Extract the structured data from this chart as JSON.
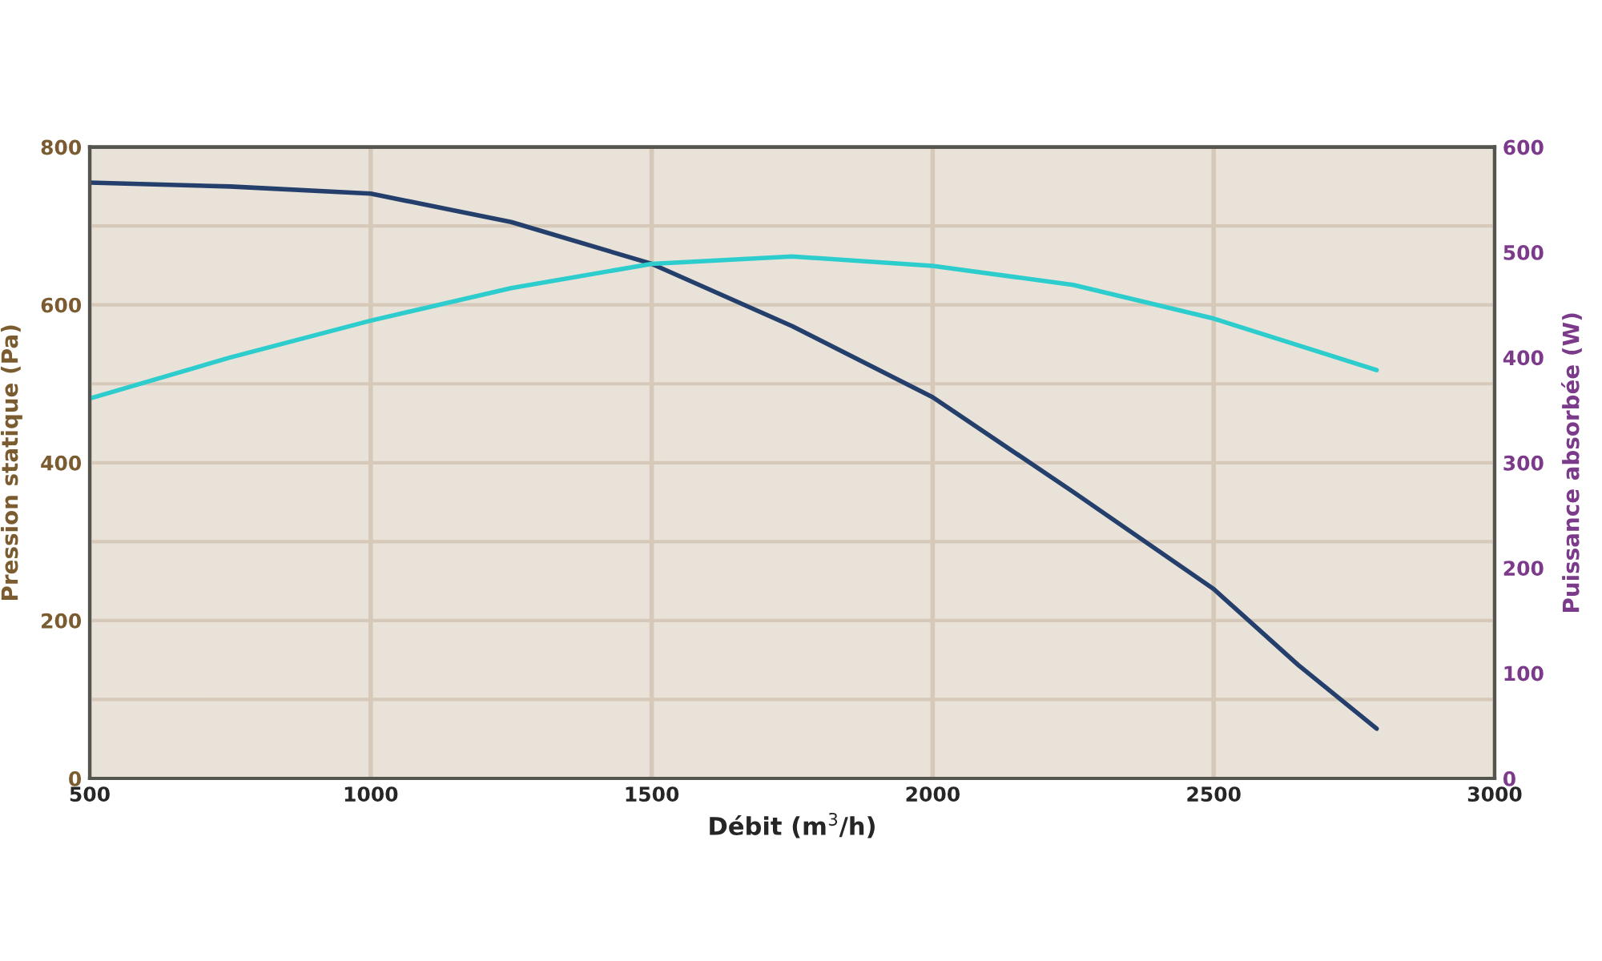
{
  "chart_data": {
    "type": "line",
    "xlabel": "Débit (m$^{3}$/h)",
    "ylabel": "Pression statique (Pa)",
    "y2label": "Puissance absorbée (W)",
    "xlim": [
      500,
      3000
    ],
    "xticks": [
      500,
      1000,
      1500,
      2000,
      2500,
      3000
    ],
    "ylim": [
      0,
      800
    ],
    "yticks": [
      0,
      {
        "value": 100,
        "label": null
      },
      200,
      {
        "value": 300,
        "label": null
      },
      400,
      {
        "value": 500,
        "label": null
      },
      600,
      {
        "value": 700,
        "label": null
      },
      800
    ],
    "y2lim": [
      0,
      600
    ],
    "y2ticks": [
      0,
      100,
      200,
      300,
      400,
      500,
      600
    ],
    "grid": true,
    "marker": "none",
    "line_style": "solid",
    "series": [
      {
        "color": "#243f6b",
        "x": [
          500,
          750,
          1000,
          1250,
          1500,
          1750,
          2000,
          2250,
          2500,
          2650,
          2790
        ],
        "values": [
          755,
          750,
          741,
          705,
          652,
          573,
          483,
          363,
          240,
          144,
          63
        ]
      },
      {
        "color": "#2ecdcd",
        "axis": "y2",
        "x": [
          500,
          750,
          1000,
          1250,
          1500,
          1750,
          2000,
          2250,
          2500,
          2790
        ],
        "values": [
          361,
          400,
          435,
          466,
          489,
          496,
          487,
          469,
          437,
          388
        ]
      }
    ]
  }
}
